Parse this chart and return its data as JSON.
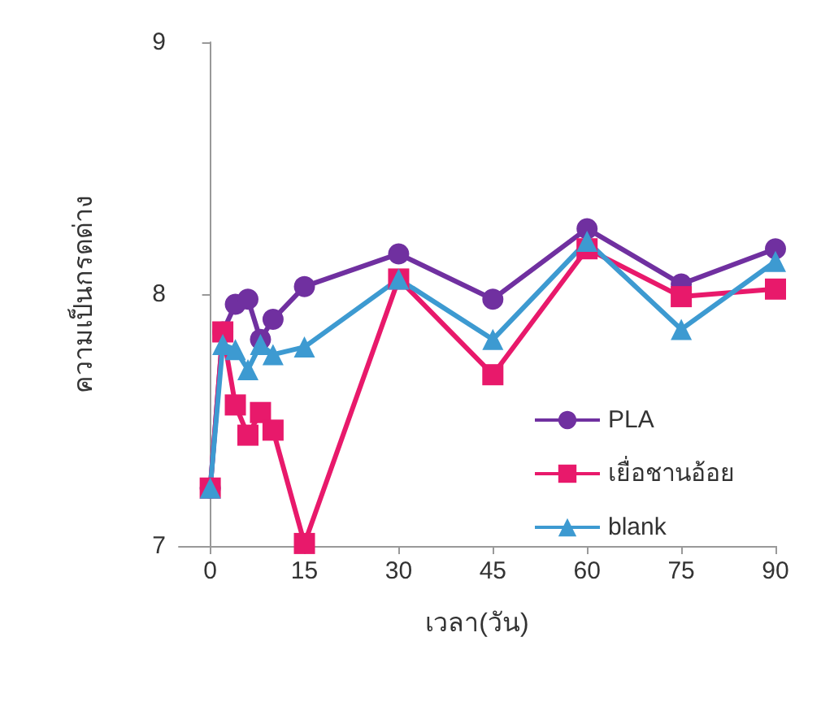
{
  "chart_data": {
    "type": "line",
    "xlabel": "เวลา(วัน)",
    "ylabel": "ความเป็นกรดด่าง",
    "x": [
      0,
      2,
      4,
      6,
      8,
      10,
      15,
      30,
      45,
      60,
      75,
      90
    ],
    "xlim": [
      -5,
      90
    ],
    "xticks": [
      0,
      15,
      30,
      45,
      60,
      75,
      90
    ],
    "ylim": [
      7,
      9
    ],
    "yticks": [
      7,
      8,
      9
    ],
    "grid": false,
    "legend": "bottom right",
    "series": [
      {
        "name": "PLA",
        "color": "#7030a0",
        "marker": "circle",
        "values": [
          7.23,
          7.85,
          7.96,
          7.98,
          7.82,
          7.9,
          8.03,
          8.16,
          7.98,
          8.26,
          8.04,
          8.18
        ]
      },
      {
        "name": "เยื่อชานอ้อย",
        "color": "#e8196b",
        "marker": "square",
        "values": [
          7.23,
          7.85,
          7.56,
          7.44,
          7.53,
          7.46,
          7.01,
          8.06,
          7.68,
          8.18,
          7.99,
          8.02
        ]
      },
      {
        "name": "blank",
        "color": "#3d9ad1",
        "marker": "triangle",
        "values": [
          7.23,
          7.8,
          7.78,
          7.7,
          7.8,
          7.76,
          7.79,
          8.06,
          7.82,
          8.21,
          7.86,
          8.13
        ]
      }
    ]
  }
}
